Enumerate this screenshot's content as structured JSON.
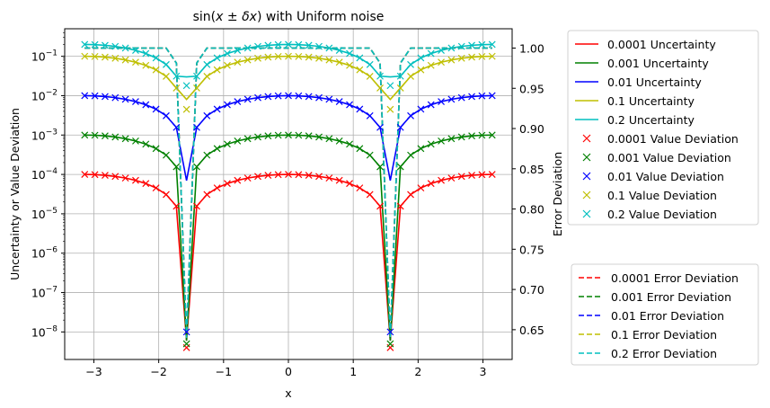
{
  "chart_data": {
    "type": "line",
    "title": "sin(x ± δx) with Uniform noise",
    "title_parts": [
      "sin(",
      "x",
      " ± ",
      "δx",
      ") with Uniform noise"
    ],
    "xlabel": "x",
    "ylabel": "Uncertainty or Value Deviation",
    "y2label": "Error Deviation",
    "xlim": [
      -3.45,
      3.45
    ],
    "ylim_log": [
      2e-09,
      0.5
    ],
    "y2lim": [
      0.613,
      1.024
    ],
    "yscale": "log",
    "grid": true,
    "x_ticks": [
      -3,
      -2,
      -1,
      0,
      1,
      2,
      3
    ],
    "x_tick_labels": [
      "−3",
      "−2",
      "−1",
      "0",
      "1",
      "2",
      "3"
    ],
    "y_ticks": [
      -8,
      -7,
      -6,
      -5,
      -4,
      -3,
      -2,
      -1
    ],
    "y_tick_base": "10",
    "y_tick_exponents": [
      "−8",
      "−7",
      "−6",
      "−5",
      "−4",
      "−3",
      "−2",
      "−1"
    ],
    "y2_ticks": [
      0.65,
      0.7,
      0.75,
      0.8,
      0.85,
      0.9,
      0.95,
      1.0
    ],
    "y2_tick_labels": [
      "0.65",
      "0.70",
      "0.75",
      "0.80",
      "0.85",
      "0.90",
      "0.95",
      "1.00"
    ],
    "noise_levels": [
      0.0001,
      0.001,
      0.01,
      0.1,
      0.2
    ],
    "x_range": [
      -3.14159,
      3.14159
    ],
    "num_points": 41,
    "colors": [
      "#ff0000",
      "#008000",
      "#0000ff",
      "#bfbf00",
      "#00bfbf"
    ],
    "uncertainty_series": [
      {
        "name": "0.0001 Uncertainty",
        "delta": 0.0001,
        "peak": 0.0001,
        "dip_min": 6e-09
      },
      {
        "name": "0.001 Uncertainty",
        "delta": 0.001,
        "peak": 0.001,
        "dip_min": 6e-09
      },
      {
        "name": "0.01 Uncertainty",
        "delta": 0.01,
        "peak": 0.01,
        "dip_min": 7e-05
      },
      {
        "name": "0.1 Uncertainty",
        "delta": 0.1,
        "peak": 0.1,
        "dip_min": 0.008
      },
      {
        "name": "0.2 Uncertainty",
        "delta": 0.2,
        "peak": 0.2,
        "dip_min": 0.03
      }
    ],
    "value_deviation_series": [
      {
        "name": "0.0001 Value Deviation",
        "marker": "x",
        "dip_min": 4e-09
      },
      {
        "name": "0.001 Value Deviation",
        "marker": "x",
        "dip_min": 5e-09
      },
      {
        "name": "0.01 Value Deviation",
        "marker": "x",
        "dip_min": 1e-08
      },
      {
        "name": "0.1 Value Deviation",
        "marker": "x",
        "dip_min": 0.0045
      },
      {
        "name": "0.2 Value Deviation",
        "marker": "x",
        "dip_min": 0.018
      }
    ],
    "error_deviation_series": [
      {
        "name": "0.0001 Error Deviation",
        "plateau": 1.0,
        "dip_min": 0.64
      },
      {
        "name": "0.001 Error Deviation",
        "plateau": 1.0,
        "dip_min": 0.64
      },
      {
        "name": "0.01 Error Deviation",
        "plateau": 1.0,
        "dip_min": 0.64
      },
      {
        "name": "0.1 Error Deviation",
        "plateau": 1.0,
        "dip_min": 0.64
      },
      {
        "name": "0.2 Error Deviation",
        "plateau": 1.0,
        "dip_min": 0.64
      }
    ],
    "legend_placement": "outside right (two boxes: upper and lower)"
  }
}
